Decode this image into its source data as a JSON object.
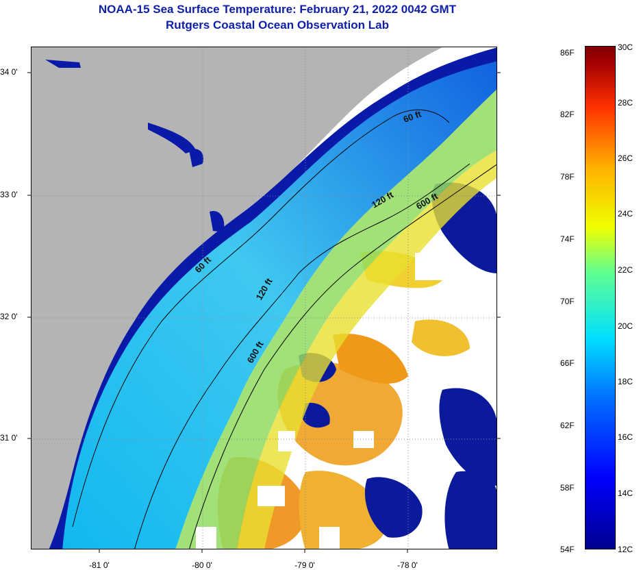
{
  "title": "NOAA-15 Sea Surface Temperature:  February 21, 2022 0042 GMT",
  "subtitle": "Rutgers Coastal Ocean Observation Lab",
  "map": {
    "lat_ticks": [
      "34 0'",
      "33 0'",
      "32 0'",
      "31 0'"
    ],
    "lon_ticks": [
      "-81 0'",
      "-80 0'",
      "-79 0'",
      "-78 0'"
    ],
    "contour_labels": [
      "60 ft",
      "120 ft",
      "600 ft",
      "60 ft",
      "120 ft",
      "600 ft"
    ],
    "colors": {
      "land": "#b4b4b4",
      "cloud": "#ffffff"
    }
  },
  "colorbar": {
    "fahrenheit_labels": [
      "86F",
      "82F",
      "78F",
      "74F",
      "70F",
      "66F",
      "62F",
      "58F",
      "54F"
    ],
    "celsius_labels": [
      "30C",
      "28C",
      "26C",
      "24C",
      "22C",
      "20C",
      "18C",
      "16C",
      "14C",
      "12C"
    ],
    "range_c": [
      12,
      30
    ],
    "colormap": "jet"
  }
}
